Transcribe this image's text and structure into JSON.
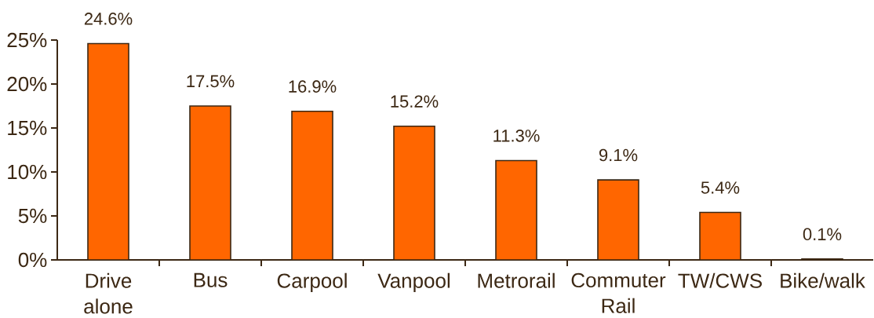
{
  "chart_data": {
    "type": "bar",
    "categories": [
      "Drive alone",
      "Bus",
      "Carpool",
      "Vanpool",
      "Metrorail",
      "Commuter Rail",
      "TW/CWS",
      "Bike/walk"
    ],
    "values": [
      24.6,
      17.5,
      16.9,
      15.2,
      11.3,
      9.1,
      5.4,
      0.1
    ],
    "value_labels": [
      "24.6%",
      "17.5%",
      "16.9%",
      "15.2%",
      "11.3%",
      "9.1%",
      "5.4%",
      "0.1%"
    ],
    "color": "#ff6600",
    "ylim": [
      0,
      25
    ],
    "yticks": [
      {
        "value": 0,
        "label": "0%"
      },
      {
        "value": 5,
        "label": "5%"
      },
      {
        "value": 10,
        "label": "10%"
      },
      {
        "value": 15,
        "label": "15%"
      },
      {
        "value": 20,
        "label": "20%"
      },
      {
        "value": 25,
        "label": "25%"
      }
    ]
  }
}
